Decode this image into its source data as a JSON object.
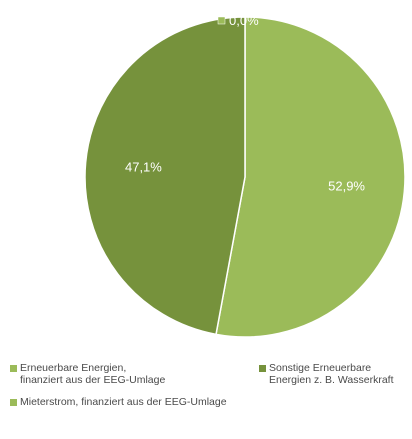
{
  "chart_data": {
    "type": "pie",
    "title": "",
    "slices": [
      {
        "label": "Erneuerbare Energien,\nfinanziert aus der EEG-Umlage",
        "value": 52.9,
        "value_label": "52,9%",
        "color": "#9bbb59"
      },
      {
        "label": "Sonstige Erneuerbare\nEnergien z. B. Wasserkraft",
        "value": 47.1,
        "value_label": "47,1%",
        "color": "#76923c"
      },
      {
        "label": "Mieterstrom, finanziert aus der EEG-Umlage",
        "value": 0.0,
        "value_label": "0,0%",
        "color": "#9bbb59"
      }
    ],
    "legend_position": "bottom",
    "label_color": "#ffffff"
  }
}
